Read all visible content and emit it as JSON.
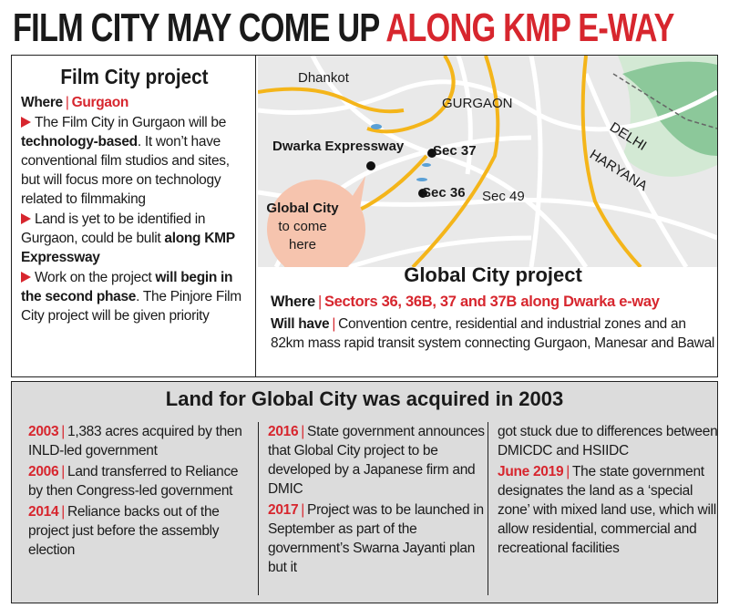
{
  "title": {
    "lead": "FILM CITY MAY COME UP",
    "highlight": "ALONG KMP E-WAY"
  },
  "separator": "|",
  "film_city": {
    "heading": "Film City project",
    "where_label": "Where",
    "where_value": "Gurgaon",
    "points": [
      {
        "runs": [
          {
            "text": "The Film City in Gurgaon will be "
          },
          {
            "text": "technology-based",
            "bold": true
          },
          {
            "text": ". It won’t have conventional film studios and sites, but will focus more on technology related to filmmaking"
          }
        ]
      },
      {
        "runs": [
          {
            "text": "Land is yet to be identified in Gurgaon, could be bulit "
          },
          {
            "text": "along KMP Expressway",
            "bold": true
          }
        ]
      },
      {
        "runs": [
          {
            "text": "Work on the project "
          },
          {
            "text": "will begin in the second phase",
            "bold": true
          },
          {
            "text": ". The Pinjore Film City project will be given priority"
          }
        ]
      }
    ]
  },
  "map": {
    "places": [
      "Dhankot",
      "GURGAON",
      "DELHI",
      "HARYANA",
      "Dwarka Expressway",
      "Sec 37",
      "Sec 36",
      "Sec 49"
    ],
    "callout": {
      "title": "Global City",
      "text": "to come here"
    }
  },
  "global_city": {
    "heading": "Global City project",
    "where_label": "Where",
    "where_value": "Sectors 36, 36B, 37 and 37B along Dwarka e-way",
    "will_have_label": "Will have",
    "will_have_value": "Convention centre, residential and industrial zones and an 82km mass rapid transit system connecting Gurgaon, Manesar and Bawal"
  },
  "timeline": {
    "heading": "Land for Global City was acquired in 2003",
    "columns": [
      [
        {
          "year": "2003",
          "text": "1,383 acres acquired by then INLD-led government"
        },
        {
          "year": "2006",
          "text": "Land transferred to Reliance by then Congress-led government"
        },
        {
          "year": "2014",
          "text": "Reliance backs out of the project just before the assembly election"
        }
      ],
      [
        {
          "year": "2016",
          "text": "State government announces that Global City project to be developed by a Japanese firm and DMIC"
        },
        {
          "year": "2017",
          "text": "Project was to be launched in September as part of the government’s Swarna Jayanti plan but it"
        }
      ],
      [
        {
          "text": "got stuck due to differences between DMICDC and HSIIDC"
        },
        {
          "year": "June 2019",
          "text": "The state government designates the land as a ‘special zone’ with mixed land use, which will allow residential, commercial and recreational facilities"
        }
      ]
    ]
  }
}
